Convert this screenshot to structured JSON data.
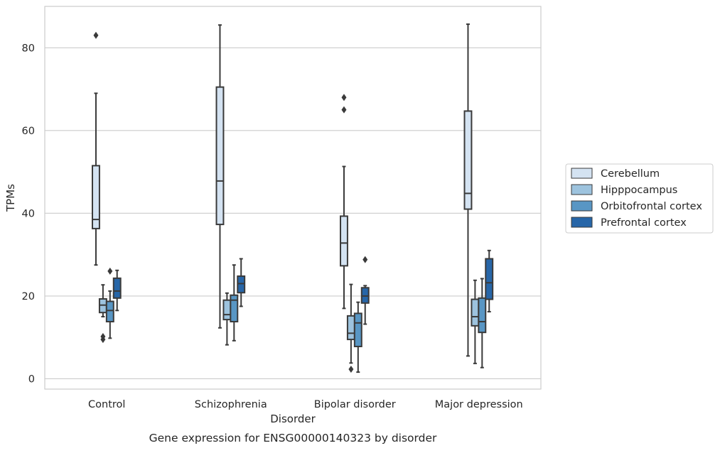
{
  "chart_data": {
    "type": "box",
    "title": "",
    "caption": "Gene expression for ENSG00000140323 by disorder",
    "xlabel": "Disorder",
    "ylabel": "TPMs",
    "ylim": [
      -2.5,
      90
    ],
    "yticks": [
      0,
      20,
      40,
      60,
      80
    ],
    "grid": "horizontal",
    "legend_position": "right",
    "categories": [
      "Control",
      "Schizophrenia",
      "Bipolar disorder",
      "Major depression"
    ],
    "series": [
      {
        "name": "Cerebellum",
        "color": "#d4e3f2",
        "boxes": [
          {
            "whisker_low": 27.5,
            "q1": 36.3,
            "median": 38.5,
            "q3": 51.5,
            "whisker_high": 69.0,
            "outliers": [
              83.0
            ]
          },
          {
            "whisker_low": 12.3,
            "q1": 37.3,
            "median": 47.8,
            "q3": 70.5,
            "whisker_high": 85.5,
            "outliers": []
          },
          {
            "whisker_low": 17.0,
            "q1": 27.3,
            "median": 32.8,
            "q3": 39.3,
            "whisker_high": 51.3,
            "outliers": [
              65.0,
              68.0
            ]
          },
          {
            "whisker_low": 5.5,
            "q1": 41.0,
            "median": 44.8,
            "q3": 64.7,
            "whisker_high": 85.7,
            "outliers": []
          }
        ]
      },
      {
        "name": "Hipppocampus",
        "color": "#9dc3de",
        "boxes": [
          {
            "whisker_low": 15.0,
            "q1": 16.0,
            "median": 17.8,
            "q3": 19.3,
            "whisker_high": 22.7,
            "outliers": [
              9.5,
              10.2
            ]
          },
          {
            "whisker_low": 8.2,
            "q1": 14.3,
            "median": 15.5,
            "q3": 19.0,
            "whisker_high": 20.7,
            "outliers": []
          },
          {
            "whisker_low": 3.8,
            "q1": 9.5,
            "median": 11.0,
            "q3": 15.2,
            "whisker_high": 22.8,
            "outliers": [
              2.3
            ]
          },
          {
            "whisker_low": 3.7,
            "q1": 12.8,
            "median": 15.0,
            "q3": 19.2,
            "whisker_high": 23.8,
            "outliers": []
          }
        ]
      },
      {
        "name": "Orbitofrontal cortex",
        "color": "#5896c4",
        "boxes": [
          {
            "whisker_low": 9.8,
            "q1": 13.8,
            "median": 16.5,
            "q3": 18.7,
            "whisker_high": 21.2,
            "outliers": [
              26.0
            ]
          },
          {
            "whisker_low": 9.2,
            "q1": 13.8,
            "median": 19.0,
            "q3": 20.2,
            "whisker_high": 27.5,
            "outliers": []
          },
          {
            "whisker_low": 1.6,
            "q1": 7.8,
            "median": 13.5,
            "q3": 15.8,
            "whisker_high": 18.5,
            "outliers": []
          },
          {
            "whisker_low": 2.7,
            "q1": 11.2,
            "median": 13.8,
            "q3": 19.5,
            "whisker_high": 24.2,
            "outliers": []
          }
        ]
      },
      {
        "name": "Prefrontal cortex",
        "color": "#2766a8",
        "boxes": [
          {
            "whisker_low": 16.5,
            "q1": 19.5,
            "median": 21.2,
            "q3": 24.3,
            "whisker_high": 26.2,
            "outliers": []
          },
          {
            "whisker_low": 17.5,
            "q1": 20.8,
            "median": 23.0,
            "q3": 24.8,
            "whisker_high": 29.0,
            "outliers": []
          },
          {
            "whisker_low": 13.2,
            "q1": 18.3,
            "median": 20.0,
            "q3": 22.0,
            "whisker_high": 22.5,
            "outliers": [
              28.8
            ]
          },
          {
            "whisker_low": 16.2,
            "q1": 19.2,
            "median": 23.2,
            "q3": 29.0,
            "whisker_high": 31.0,
            "outliers": []
          }
        ]
      }
    ]
  }
}
